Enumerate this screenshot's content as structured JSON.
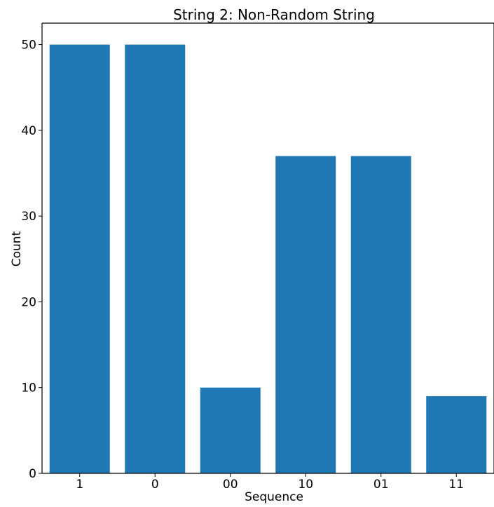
{
  "chart_data": {
    "type": "bar",
    "title": "String 2: Non-Random String",
    "xlabel": "Sequence",
    "ylabel": "Count",
    "categories": [
      "1",
      "0",
      "00",
      "10",
      "01",
      "11"
    ],
    "values": [
      50,
      50,
      10,
      37,
      37,
      9
    ],
    "ylim": [
      0,
      52.5
    ],
    "yticks": [
      0,
      10,
      20,
      30,
      40,
      50
    ],
    "bar_color": "#1f77b4",
    "grid": false,
    "legend": "none"
  }
}
